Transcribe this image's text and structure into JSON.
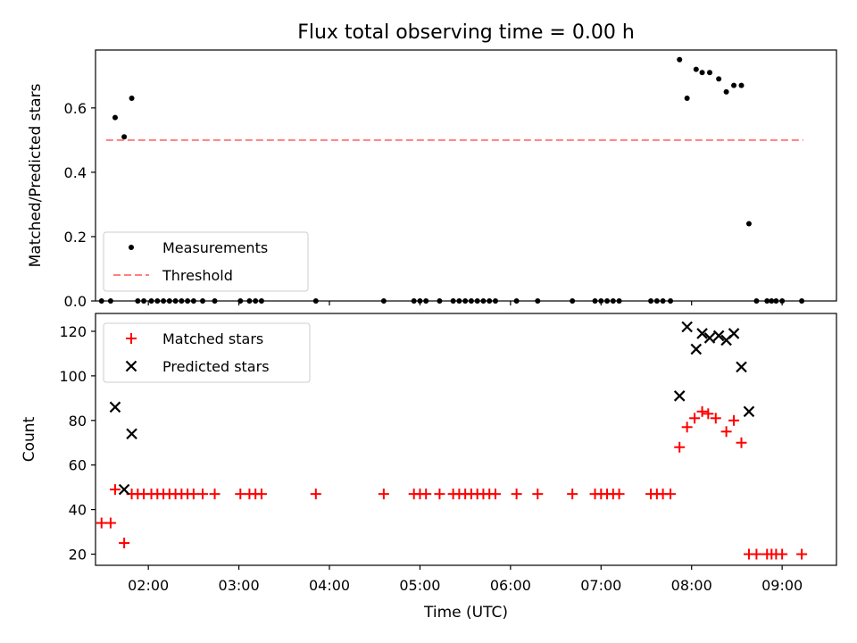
{
  "chart_data": [
    {
      "type": "scatter",
      "title": "Flux total observing time = 0.00 h",
      "ylabel": "Matched/Predicted stars",
      "xlabel": "",
      "xlim": [
        "01:25",
        "09:36"
      ],
      "ylim": [
        0,
        0.78
      ],
      "yticks": [
        0.0,
        0.2,
        0.4,
        0.6
      ],
      "ytick_labels": [
        "0.0",
        "0.2",
        "0.4",
        "0.6"
      ],
      "grid": false,
      "legend": {
        "placement": "lower-left",
        "entries": [
          "Measurements",
          "Threshold"
        ]
      },
      "series": [
        {
          "name": "Measurements",
          "marker": "dot",
          "color": "#000000",
          "points": [
            [
              "01:29",
              0
            ],
            [
              "01:35",
              0
            ],
            [
              "01:38",
              0.57
            ],
            [
              "01:44",
              0.51
            ],
            [
              "01:49",
              0.63
            ],
            [
              "01:53",
              0
            ],
            [
              "01:57",
              0
            ],
            [
              "02:02",
              0
            ],
            [
              "02:06",
              0
            ],
            [
              "02:10",
              0
            ],
            [
              "02:14",
              0
            ],
            [
              "02:18",
              0
            ],
            [
              "02:22",
              0
            ],
            [
              "02:26",
              0
            ],
            [
              "02:30",
              0
            ],
            [
              "02:36",
              0
            ],
            [
              "02:44",
              0
            ],
            [
              "03:01",
              0
            ],
            [
              "03:07",
              0
            ],
            [
              "03:11",
              0
            ],
            [
              "03:15",
              0
            ],
            [
              "03:51",
              0
            ],
            [
              "04:36",
              0
            ],
            [
              "04:56",
              0
            ],
            [
              "05:00",
              0
            ],
            [
              "05:04",
              0
            ],
            [
              "05:13",
              0
            ],
            [
              "05:22",
              0
            ],
            [
              "05:26",
              0
            ],
            [
              "05:30",
              0
            ],
            [
              "05:34",
              0
            ],
            [
              "05:38",
              0
            ],
            [
              "05:42",
              0
            ],
            [
              "05:46",
              0
            ],
            [
              "05:50",
              0
            ],
            [
              "06:04",
              0
            ],
            [
              "06:18",
              0
            ],
            [
              "06:41",
              0
            ],
            [
              "06:56",
              0
            ],
            [
              "07:00",
              0
            ],
            [
              "07:04",
              0
            ],
            [
              "07:08",
              0
            ],
            [
              "07:12",
              0
            ],
            [
              "07:33",
              0
            ],
            [
              "07:37",
              0
            ],
            [
              "07:41",
              0
            ],
            [
              "07:46",
              0
            ],
            [
              "07:52",
              0.75
            ],
            [
              "07:57",
              0.63
            ],
            [
              "08:03",
              0.72
            ],
            [
              "08:07",
              0.71
            ],
            [
              "08:12",
              0.71
            ],
            [
              "08:18",
              0.69
            ],
            [
              "08:23",
              0.65
            ],
            [
              "08:28",
              0.67
            ],
            [
              "08:33",
              0.67
            ],
            [
              "08:38",
              0.24
            ],
            [
              "08:43",
              0
            ],
            [
              "08:50",
              0
            ],
            [
              "08:53",
              0
            ],
            [
              "08:56",
              0
            ],
            [
              "09:00",
              0
            ],
            [
              "09:13",
              0
            ]
          ]
        },
        {
          "name": "Threshold",
          "style": "dashed",
          "color": "#ff7f7f",
          "points": [
            [
              "01:32",
              0.5
            ],
            [
              "09:14",
              0.5
            ]
          ]
        }
      ]
    },
    {
      "type": "scatter",
      "title": "",
      "ylabel": "Count",
      "xlabel": "Time (UTC)",
      "xlim": [
        "01:25",
        "09:36"
      ],
      "ylim": [
        15,
        128
      ],
      "yticks": [
        20,
        40,
        60,
        80,
        100,
        120
      ],
      "ytick_labels": [
        "20",
        "40",
        "60",
        "80",
        "100",
        "120"
      ],
      "xticks": [
        "02:00",
        "03:00",
        "04:00",
        "05:00",
        "06:00",
        "07:00",
        "08:00",
        "09:00"
      ],
      "xtick_labels": [
        "02:00",
        "03:00",
        "04:00",
        "05:00",
        "06:00",
        "07:00",
        "08:00",
        "09:00"
      ],
      "grid": false,
      "legend": {
        "placement": "top-left",
        "entries": [
          "Matched stars",
          "Predicted stars"
        ]
      },
      "series": [
        {
          "name": "Matched stars",
          "marker": "plus",
          "color": "#ff0000",
          "points": [
            [
              "01:29",
              34
            ],
            [
              "01:35",
              34
            ],
            [
              "01:38",
              49
            ],
            [
              "01:44",
              25
            ],
            [
              "01:49",
              47
            ],
            [
              "01:53",
              47
            ],
            [
              "01:57",
              47
            ],
            [
              "02:02",
              47
            ],
            [
              "02:06",
              47
            ],
            [
              "02:10",
              47
            ],
            [
              "02:14",
              47
            ],
            [
              "02:18",
              47
            ],
            [
              "02:22",
              47
            ],
            [
              "02:26",
              47
            ],
            [
              "02:30",
              47
            ],
            [
              "02:36",
              47
            ],
            [
              "02:44",
              47
            ],
            [
              "03:01",
              47
            ],
            [
              "03:07",
              47
            ],
            [
              "03:11",
              47
            ],
            [
              "03:15",
              47
            ],
            [
              "03:51",
              47
            ],
            [
              "04:36",
              47
            ],
            [
              "04:56",
              47
            ],
            [
              "05:00",
              47
            ],
            [
              "05:04",
              47
            ],
            [
              "05:13",
              47
            ],
            [
              "05:22",
              47
            ],
            [
              "05:26",
              47
            ],
            [
              "05:30",
              47
            ],
            [
              "05:34",
              47
            ],
            [
              "05:38",
              47
            ],
            [
              "05:42",
              47
            ],
            [
              "05:46",
              47
            ],
            [
              "05:50",
              47
            ],
            [
              "06:04",
              47
            ],
            [
              "06:18",
              47
            ],
            [
              "06:41",
              47
            ],
            [
              "06:56",
              47
            ],
            [
              "07:00",
              47
            ],
            [
              "07:04",
              47
            ],
            [
              "07:08",
              47
            ],
            [
              "07:12",
              47
            ],
            [
              "07:33",
              47
            ],
            [
              "07:37",
              47
            ],
            [
              "07:41",
              47
            ],
            [
              "07:46",
              47
            ],
            [
              "07:52",
              68
            ],
            [
              "07:57",
              77
            ],
            [
              "08:02",
              81
            ],
            [
              "08:07",
              84
            ],
            [
              "08:11",
              83
            ],
            [
              "08:16",
              81
            ],
            [
              "08:23",
              75
            ],
            [
              "08:28",
              80
            ],
            [
              "08:33",
              70
            ],
            [
              "08:38",
              20
            ],
            [
              "08:43",
              20
            ],
            [
              "08:50",
              20
            ],
            [
              "08:53",
              20
            ],
            [
              "08:56",
              20
            ],
            [
              "09:00",
              20
            ],
            [
              "09:13",
              20
            ]
          ]
        },
        {
          "name": "Predicted stars",
          "marker": "x",
          "color": "#000000",
          "points": [
            [
              "01:38",
              86
            ],
            [
              "01:44",
              49
            ],
            [
              "01:49",
              74
            ],
            [
              "07:52",
              91
            ],
            [
              "07:57",
              122
            ],
            [
              "08:03",
              112
            ],
            [
              "08:07",
              119
            ],
            [
              "08:12",
              117
            ],
            [
              "08:18",
              118
            ],
            [
              "08:23",
              116
            ],
            [
              "08:28",
              119
            ],
            [
              "08:33",
              104
            ],
            [
              "08:38",
              84
            ]
          ]
        }
      ]
    }
  ]
}
